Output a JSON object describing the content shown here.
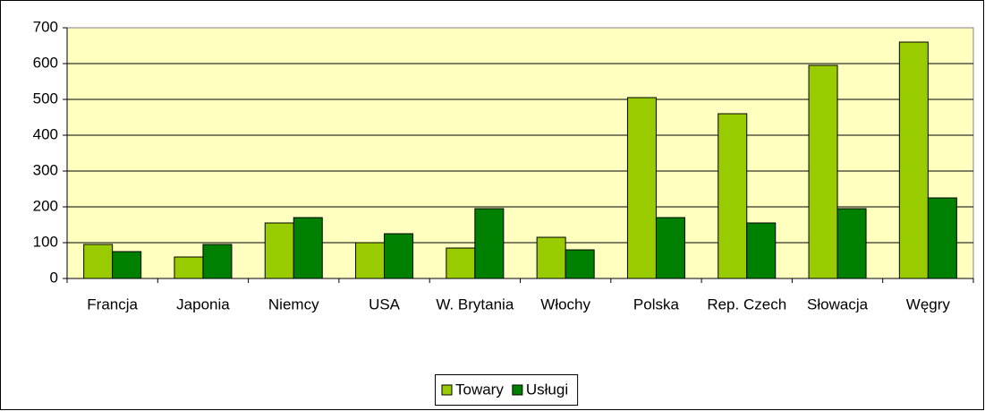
{
  "chart_data": {
    "type": "bar",
    "categories": [
      "Francja",
      "Japonia",
      "Niemcy",
      "USA",
      "W. Brytania",
      "Włochy",
      "Polska",
      "Rep. Czech",
      "Słowacja",
      "Węgry"
    ],
    "series": [
      {
        "name": "Towary",
        "color": "#99cc00",
        "values": [
          95,
          60,
          155,
          100,
          85,
          115,
          505,
          460,
          595,
          660
        ]
      },
      {
        "name": "Usługi",
        "color": "#008000",
        "values": [
          75,
          95,
          170,
          125,
          195,
          80,
          170,
          155,
          195,
          225
        ]
      }
    ],
    "ylim": [
      0,
      700
    ],
    "yticks": [
      0,
      100,
      200,
      300,
      400,
      500,
      600,
      700
    ],
    "grid": true,
    "legend": "bottom"
  }
}
